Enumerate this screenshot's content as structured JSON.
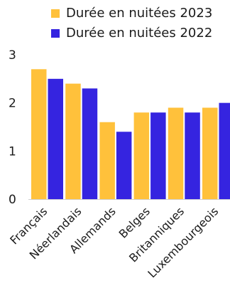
{
  "chart_data": {
    "type": "bar",
    "categories": [
      "Français",
      "Néerlandais",
      "Allemands",
      "Belges",
      "Britanniques",
      "Luxembourgeois"
    ],
    "series": [
      {
        "name": "Durée en nuitées 2023",
        "values": [
          2.7,
          2.4,
          1.6,
          1.8,
          1.9,
          1.9
        ],
        "color": "#ffc13b"
      },
      {
        "name": "Durée en nuitées 2022",
        "values": [
          2.5,
          2.3,
          1.4,
          1.8,
          1.8,
          2.0
        ],
        "color": "#3524e0"
      }
    ],
    "yticks": [
      "0",
      "1",
      "2",
      "3"
    ],
    "ylim": [
      0,
      3
    ],
    "grid": false,
    "legend_position": "top"
  }
}
